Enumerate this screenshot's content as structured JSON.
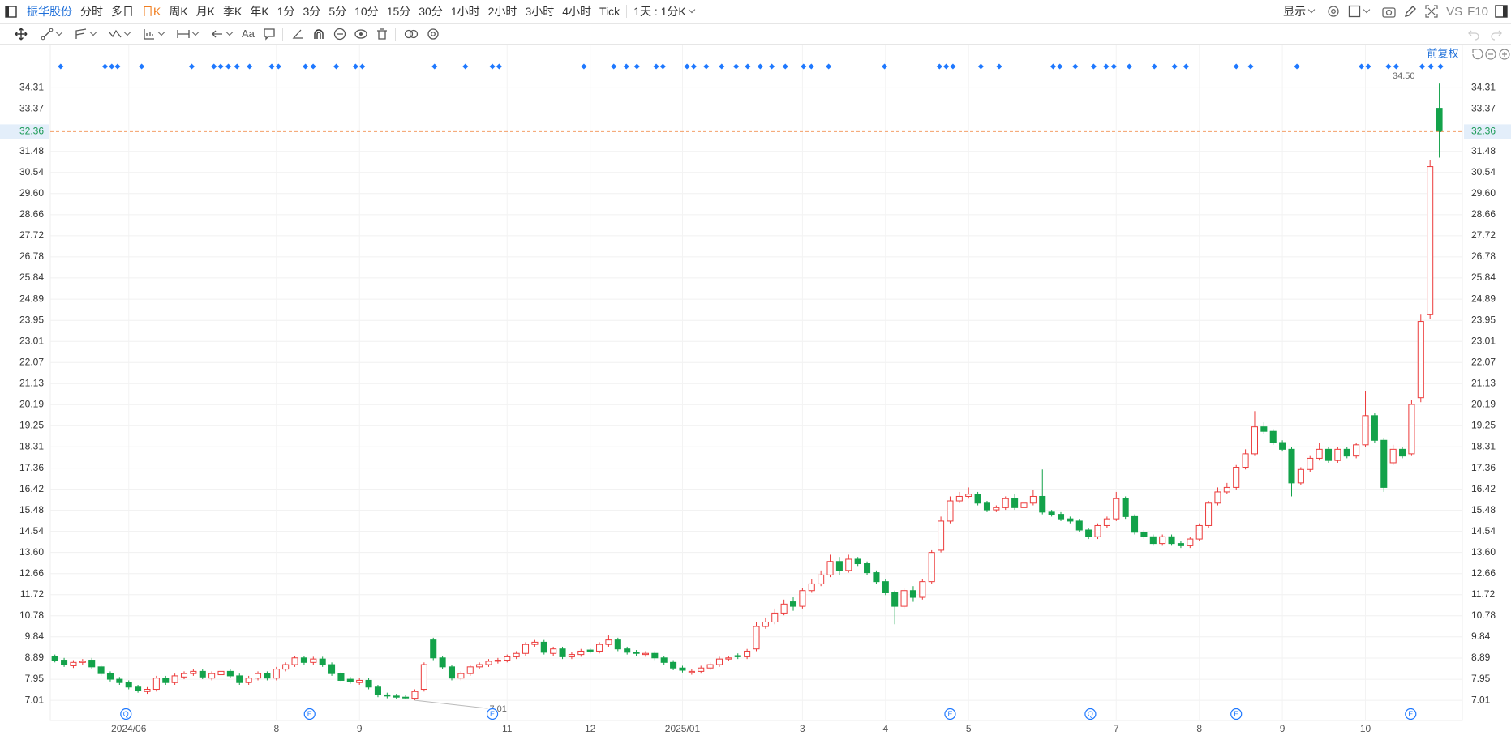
{
  "toolbar": {
    "symbol": "振华股份",
    "periods": [
      "分时",
      "多日",
      "日K",
      "周K",
      "月K",
      "季K",
      "年K",
      "1分",
      "3分",
      "5分",
      "10分",
      "15分",
      "30分",
      "1小时",
      "2小时",
      "3小时",
      "4小时",
      "Tick"
    ],
    "active_period": 2,
    "interval": "1天 : 1分K",
    "display": "显示",
    "vs": "VS",
    "f10": "F10",
    "text_tool": "Aa"
  },
  "chart_data": {
    "type": "candlestick",
    "adjust_label": "前复权",
    "up_color": "#ec3b3b",
    "down_color": "#13a24a",
    "grid": true,
    "categories": [
      null,
      null,
      null,
      null,
      null,
      null,
      null,
      null,
      "2024/06",
      null,
      null,
      null,
      null,
      null,
      null,
      null,
      null,
      null,
      null,
      null,
      null,
      null,
      null,
      null,
      "8",
      null,
      null,
      null,
      null,
      null,
      null,
      null,
      null,
      "9",
      null,
      null,
      null,
      null,
      null,
      null,
      null,
      null,
      null,
      null,
      null,
      null,
      null,
      null,
      null,
      "11",
      null,
      null,
      null,
      null,
      null,
      null,
      null,
      null,
      "12",
      null,
      null,
      null,
      null,
      null,
      null,
      null,
      null,
      null,
      "2025/01",
      null,
      null,
      null,
      null,
      null,
      null,
      null,
      null,
      null,
      null,
      null,
      null,
      "3",
      null,
      null,
      null,
      null,
      null,
      null,
      null,
      null,
      "4",
      null,
      null,
      null,
      null,
      null,
      null,
      null,
      null,
      "5",
      null,
      null,
      null,
      null,
      null,
      null,
      null,
      null,
      null,
      null,
      null,
      null,
      null,
      null,
      null,
      "7",
      null,
      null,
      null,
      null,
      null,
      null,
      null,
      null,
      "8",
      null,
      null,
      null,
      null,
      null,
      null,
      null,
      null,
      "9",
      null,
      null,
      null,
      null,
      null,
      null,
      null,
      null,
      "10",
      null,
      null,
      null,
      null,
      null,
      null,
      null,
      null
    ],
    "open": [
      8.95,
      8.8,
      8.55,
      8.7,
      8.8,
      8.5,
      8.2,
      7.95,
      7.8,
      7.6,
      7.4,
      7.5,
      8.0,
      7.8,
      8.05,
      8.2,
      8.3,
      8.0,
      8.15,
      8.3,
      8.1,
      7.8,
      8.0,
      8.2,
      8.0,
      8.4,
      8.6,
      8.9,
      8.7,
      8.85,
      8.6,
      8.2,
      7.95,
      7.8,
      7.9,
      7.6,
      7.25,
      7.2,
      7.15,
      7.1,
      7.5,
      9.7,
      8.9,
      8.5,
      8.0,
      8.2,
      8.5,
      8.6,
      8.75,
      8.8,
      8.95,
      9.1,
      9.5,
      9.6,
      9.1,
      9.3,
      8.95,
      9.05,
      9.25,
      9.2,
      9.5,
      9.7,
      9.3,
      9.15,
      9.05,
      9.1,
      8.9,
      8.7,
      8.45,
      8.25,
      8.3,
      8.45,
      8.6,
      8.85,
      9.0,
      8.95,
      9.3,
      10.3,
      10.5,
      10.9,
      11.4,
      11.2,
      11.9,
      12.2,
      12.6,
      13.2,
      12.8,
      13.3,
      13.1,
      12.7,
      12.3,
      11.8,
      11.2,
      11.9,
      11.6,
      12.3,
      13.7,
      15.0,
      15.9,
      16.1,
      16.2,
      15.8,
      15.5,
      15.6,
      16.0,
      15.6,
      15.8,
      16.1,
      15.4,
      15.3,
      15.1,
      15.0,
      14.6,
      14.3,
      14.8,
      15.1,
      16.0,
      15.2,
      14.5,
      14.3,
      14.0,
      14.3,
      14.0,
      13.9,
      14.2,
      14.8,
      15.8,
      16.3,
      16.5,
      17.4,
      18.0,
      19.2,
      19.0,
      18.5,
      18.2,
      16.7,
      17.3,
      17.8,
      18.2,
      17.7,
      18.2,
      17.9,
      18.4,
      19.7,
      18.6,
      17.6,
      18.2,
      18.0,
      20.5,
      24.2,
      33.4
    ],
    "high": [
      9.05,
      8.9,
      8.8,
      8.85,
      8.9,
      8.6,
      8.3,
      8.05,
      7.9,
      7.7,
      7.6,
      8.1,
      8.1,
      8.2,
      8.3,
      8.4,
      8.4,
      8.3,
      8.4,
      8.4,
      8.2,
      8.1,
      8.3,
      8.3,
      8.5,
      8.7,
      9.0,
      9.0,
      8.95,
      8.95,
      8.7,
      8.3,
      8.05,
      8.0,
      8.0,
      7.7,
      7.35,
      7.3,
      7.25,
      7.5,
      8.7,
      9.8,
      9.0,
      8.6,
      8.3,
      8.6,
      8.7,
      8.85,
      8.9,
      9.05,
      9.2,
      9.6,
      9.7,
      9.7,
      9.4,
      9.4,
      9.15,
      9.3,
      9.35,
      9.6,
      9.9,
      9.8,
      9.4,
      9.25,
      9.2,
      9.2,
      9.0,
      8.8,
      8.55,
      8.4,
      8.55,
      8.7,
      8.95,
      9.0,
      9.1,
      9.3,
      10.5,
      10.7,
      11.1,
      11.5,
      11.6,
      12.0,
      12.4,
      12.8,
      13.5,
      13.4,
      13.5,
      13.4,
      13.2,
      12.8,
      12.4,
      11.9,
      12.0,
      12.1,
      12.4,
      13.7,
      15.2,
      16.1,
      16.3,
      16.5,
      16.3,
      15.9,
      15.7,
      16.1,
      16.2,
      15.9,
      16.4,
      17.3,
      15.5,
      15.4,
      15.2,
      15.1,
      14.7,
      14.9,
      15.2,
      16.3,
      16.1,
      15.3,
      14.6,
      14.4,
      14.4,
      14.4,
      14.1,
      14.3,
      14.9,
      15.9,
      16.5,
      16.7,
      17.5,
      18.2,
      19.9,
      19.4,
      19.1,
      18.6,
      18.3,
      17.4,
      17.9,
      18.5,
      18.3,
      18.3,
      18.3,
      18.5,
      20.8,
      19.8,
      18.7,
      18.4,
      18.3,
      20.4,
      24.2,
      31.1,
      34.5
    ],
    "low": [
      8.7,
      8.5,
      8.45,
      8.6,
      8.4,
      8.1,
      7.85,
      7.7,
      7.5,
      7.35,
      7.3,
      7.4,
      7.7,
      7.7,
      7.95,
      8.1,
      7.95,
      7.9,
      8.05,
      8.0,
      7.7,
      7.7,
      7.9,
      7.9,
      7.9,
      8.3,
      8.5,
      8.6,
      8.6,
      8.5,
      8.1,
      7.8,
      7.75,
      7.7,
      7.5,
      7.15,
      7.1,
      7.05,
      7.05,
      7.01,
      7.4,
      8.8,
      8.4,
      7.9,
      7.9,
      8.1,
      8.4,
      8.5,
      8.65,
      8.7,
      8.85,
      9.0,
      9.4,
      9.05,
      9.0,
      8.85,
      8.85,
      8.95,
      9.1,
      9.1,
      9.4,
      9.2,
      9.05,
      9.0,
      8.95,
      8.8,
      8.6,
      8.35,
      8.25,
      8.15,
      8.2,
      8.35,
      8.5,
      8.75,
      8.85,
      8.85,
      9.2,
      10.2,
      10.4,
      10.8,
      11.0,
      11.1,
      11.8,
      12.1,
      12.5,
      12.6,
      12.7,
      13.0,
      12.6,
      12.2,
      11.7,
      10.4,
      11.1,
      11.4,
      11.5,
      12.2,
      13.6,
      14.9,
      15.8,
      16.0,
      15.7,
      15.4,
      15.4,
      15.5,
      15.5,
      15.5,
      15.7,
      15.3,
      15.2,
      15.0,
      14.9,
      14.5,
      14.2,
      14.2,
      14.7,
      15.0,
      15.1,
      14.4,
      14.2,
      13.9,
      13.9,
      13.9,
      13.8,
      13.8,
      14.1,
      14.7,
      15.7,
      16.2,
      16.4,
      17.3,
      17.9,
      18.9,
      18.4,
      18.1,
      16.1,
      16.6,
      17.2,
      17.7,
      17.6,
      17.6,
      17.8,
      17.8,
      18.3,
      18.5,
      16.3,
      17.5,
      17.8,
      17.9,
      20.3,
      24.0,
      31.2
    ],
    "close": [
      8.8,
      8.6,
      8.7,
      8.75,
      8.5,
      8.2,
      7.95,
      7.8,
      7.6,
      7.45,
      7.5,
      8.0,
      7.8,
      8.1,
      8.2,
      8.3,
      8.05,
      8.2,
      8.3,
      8.1,
      7.8,
      8.0,
      8.2,
      8.0,
      8.4,
      8.6,
      8.9,
      8.7,
      8.85,
      8.6,
      8.2,
      7.9,
      7.85,
      7.9,
      7.6,
      7.25,
      7.2,
      7.15,
      7.12,
      7.4,
      8.6,
      8.9,
      8.5,
      8.0,
      8.2,
      8.5,
      8.6,
      8.75,
      8.8,
      8.95,
      9.1,
      9.5,
      9.6,
      9.15,
      9.3,
      8.95,
      9.05,
      9.2,
      9.2,
      9.5,
      9.7,
      9.3,
      9.15,
      9.1,
      9.1,
      8.9,
      8.7,
      8.45,
      8.35,
      8.3,
      8.45,
      8.6,
      8.85,
      8.9,
      8.95,
      9.2,
      10.3,
      10.5,
      10.9,
      11.3,
      11.2,
      11.9,
      12.2,
      12.6,
      13.2,
      12.8,
      13.3,
      13.1,
      12.7,
      12.3,
      11.8,
      11.2,
      11.9,
      11.6,
      12.3,
      13.6,
      15.0,
      15.9,
      16.1,
      16.2,
      15.8,
      15.5,
      15.6,
      16.0,
      15.6,
      15.8,
      16.1,
      15.4,
      15.3,
      15.1,
      15.0,
      14.6,
      14.3,
      14.8,
      15.1,
      16.0,
      15.2,
      14.5,
      14.3,
      14.0,
      14.3,
      14.0,
      13.9,
      14.2,
      14.8,
      15.8,
      16.3,
      16.5,
      17.4,
      18.0,
      19.2,
      19.0,
      18.5,
      18.2,
      16.7,
      17.3,
      17.8,
      18.2,
      17.7,
      18.2,
      17.9,
      18.4,
      19.7,
      18.6,
      16.5,
      18.2,
      17.9,
      20.2,
      23.9,
      30.8,
      32.36
    ],
    "last_price": 32.36,
    "high_label": {
      "value": 34.5,
      "label": "34.50"
    },
    "low_label": 7.01,
    "event_badges": [
      "Q",
      "E",
      "E",
      "E",
      "Q",
      "E",
      "E"
    ],
    "ylim": [
      6.11,
      36.24
    ],
    "yticks": [
      7.01,
      7.95,
      8.89,
      9.84,
      10.78,
      11.72,
      12.66,
      {
        "value": 13.6,
        "label": "13.60"
      },
      14.54,
      15.48,
      16.42,
      17.36,
      18.31,
      19.25,
      20.19,
      21.13,
      22.07,
      23.01,
      23.95,
      24.89,
      25.84,
      26.78,
      27.72,
      28.66,
      {
        "value": 29.6,
        "label": "29.60"
      },
      30.54,
      31.48,
      33.37,
      34.31
    ]
  }
}
